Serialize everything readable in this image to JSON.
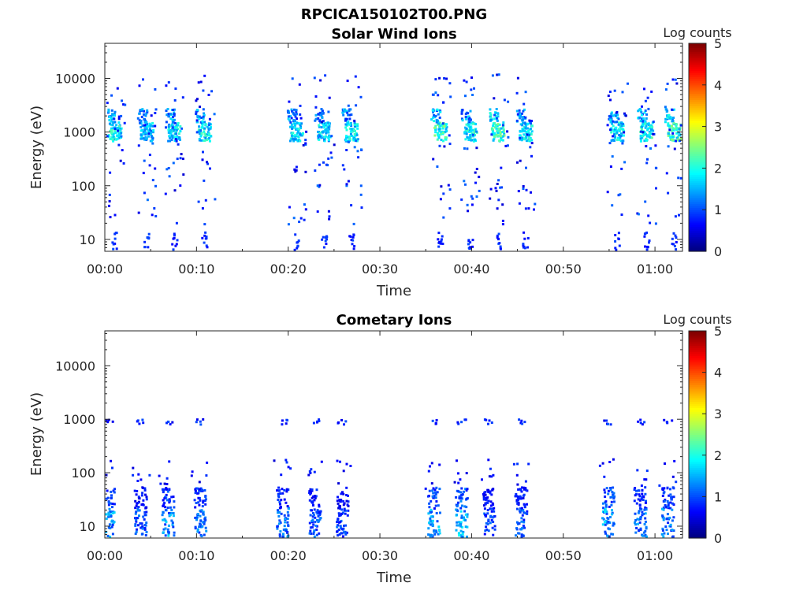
{
  "figure_title": "RPCICA150102T00.PNG",
  "chart_data": [
    {
      "type": "heatmap",
      "title": "Solar Wind Ions",
      "xlabel": "Time",
      "ylabel": "Energy (eV)",
      "y_scale": "log",
      "ylim": [
        6,
        45000
      ],
      "xlim_minutes": [
        0,
        63
      ],
      "x_ticks": [
        "00:00",
        "00:10",
        "00:20",
        "00:30",
        "00:40",
        "00:50",
        "01:00"
      ],
      "y_ticks": [
        "10",
        "100",
        "1000",
        "10000"
      ],
      "colorbar": {
        "label": "Log counts",
        "ticks": [
          "0",
          "1",
          "2",
          "3",
          "4",
          "5"
        ],
        "range": [
          0,
          5
        ],
        "colormap": "jet"
      },
      "bursts": [
        {
          "t": 1.0,
          "peak": 2.3
        },
        {
          "t": 4.5,
          "peak": 2.0
        },
        {
          "t": 7.5,
          "peak": 2.2
        },
        {
          "t": 10.8,
          "peak": 2.3
        },
        {
          "t": 20.8,
          "peak": 2.2
        },
        {
          "t": 23.8,
          "peak": 2.1
        },
        {
          "t": 26.8,
          "peak": 2.2
        },
        {
          "t": 36.5,
          "peak": 2.6
        },
        {
          "t": 39.8,
          "peak": 2.3
        },
        {
          "t": 42.8,
          "peak": 2.6
        },
        {
          "t": 45.8,
          "peak": 2.2
        },
        {
          "t": 55.8,
          "peak": 2.2
        },
        {
          "t": 59.0,
          "peak": 2.5
        },
        {
          "t": 62.0,
          "peak": 2.6
        }
      ]
    },
    {
      "type": "heatmap",
      "title": "Cometary Ions",
      "xlabel": "Time",
      "ylabel": "Energy (eV)",
      "y_scale": "log",
      "ylim": [
        6,
        45000
      ],
      "xlim_minutes": [
        0,
        63
      ],
      "x_ticks": [
        "00:00",
        "00:10",
        "00:20",
        "00:30",
        "00:40",
        "00:50",
        "01:00"
      ],
      "y_ticks": [
        "10",
        "100",
        "1000",
        "10000"
      ],
      "colorbar": {
        "label": "Log counts",
        "ticks": [
          "0",
          "1",
          "2",
          "3",
          "4",
          "5"
        ],
        "range": [
          0,
          5
        ],
        "colormap": "jet"
      },
      "bursts": [
        {
          "t": 0.3,
          "peak": 1.7
        },
        {
          "t": 3.8,
          "peak": 1.3
        },
        {
          "t": 6.8,
          "peak": 1.7
        },
        {
          "t": 10.3,
          "peak": 1.5
        },
        {
          "t": 19.3,
          "peak": 1.5
        },
        {
          "t": 22.8,
          "peak": 1.3
        },
        {
          "t": 25.8,
          "peak": 1.2
        },
        {
          "t": 35.8,
          "peak": 1.8
        },
        {
          "t": 38.8,
          "peak": 1.9
        },
        {
          "t": 41.8,
          "peak": 1.2
        },
        {
          "t": 45.3,
          "peak": 1.3
        },
        {
          "t": 54.8,
          "peak": 1.8
        },
        {
          "t": 58.3,
          "peak": 1.5
        },
        {
          "t": 61.3,
          "peak": 1.6
        }
      ]
    }
  ]
}
